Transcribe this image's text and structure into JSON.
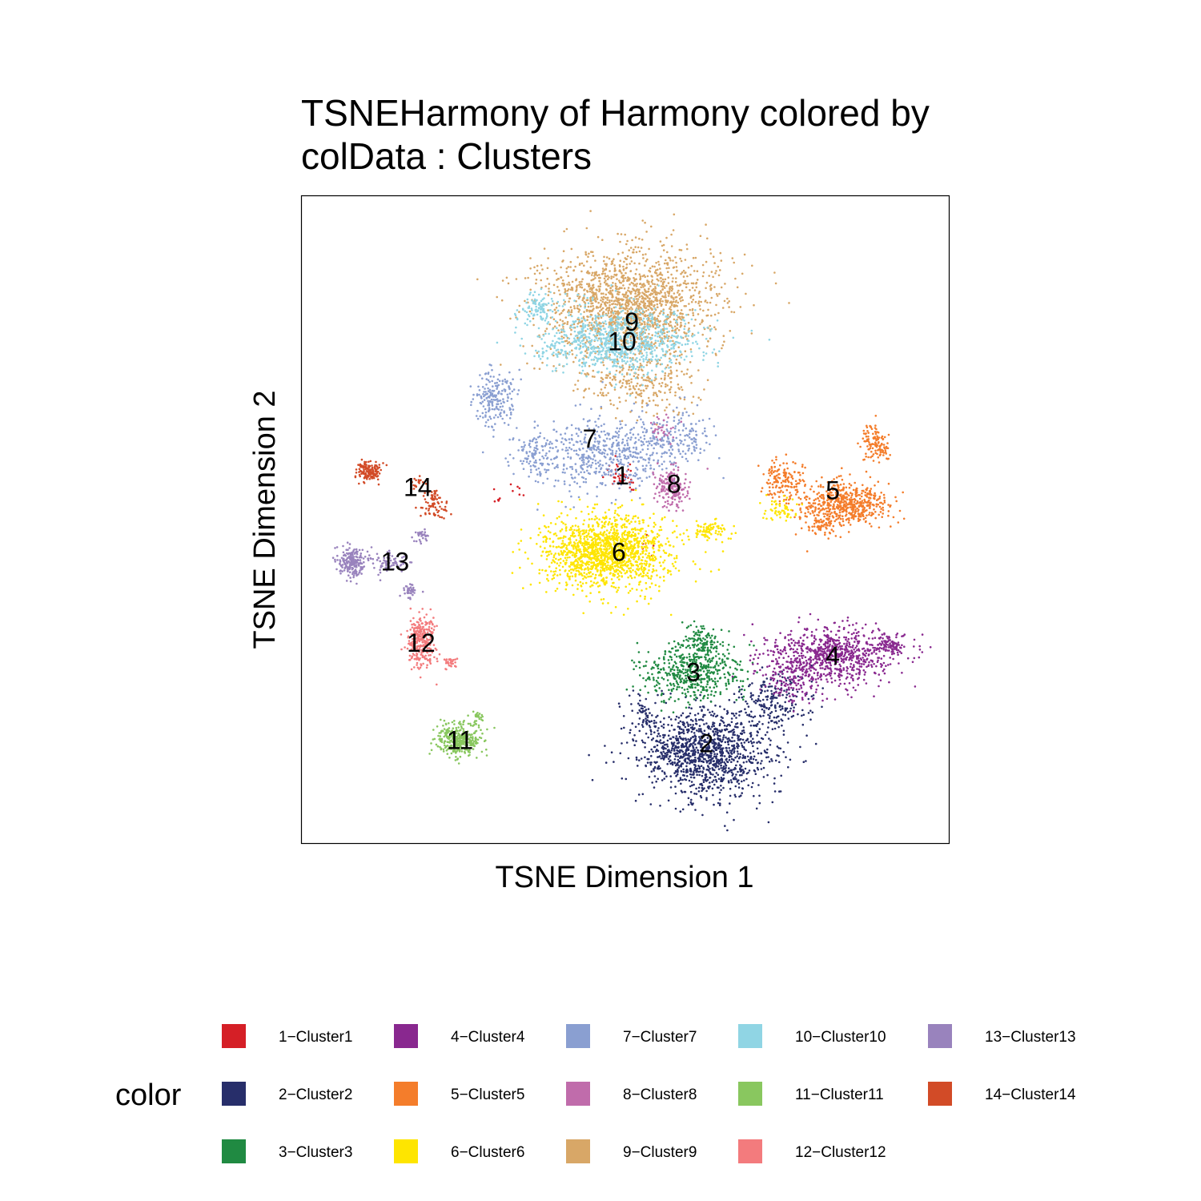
{
  "title_line1": "TSNEHarmony of Harmony  colored by",
  "title_line2": "colData :  Clusters",
  "chart_data": {
    "type": "scatter",
    "xlabel": "TSNE Dimension 1",
    "ylabel": "TSNE Dimension 2",
    "xlim": [
      0,
      100
    ],
    "ylim": [
      0,
      100
    ],
    "grid": false,
    "legend_title": "color",
    "legend_position": "bottom",
    "point_counts_note": "",
    "series": [
      {
        "id": "1",
        "name": "1−Cluster1",
        "color": "#D51F26",
        "label": "1",
        "centroid": [
          49.5,
          56.8
        ],
        "blobs": [
          [
            49.5,
            56.8,
            2.5,
            2.0,
            40
          ],
          [
            30.5,
            53.0,
            1.0,
            1.5,
            6
          ],
          [
            53.5,
            46.5,
            1.2,
            1.5,
            6
          ],
          [
            32.5,
            54.5,
            2,
            2,
            6
          ]
        ]
      },
      {
        "id": "2",
        "name": "2−Cluster2",
        "color": "#272E6A",
        "label": "2",
        "centroid": [
          62.5,
          15.5
        ],
        "blobs": [
          [
            62.5,
            14.0,
            9.5,
            6.0,
            1200
          ],
          [
            73.0,
            22.0,
            5.0,
            4.0,
            200
          ],
          [
            53.0,
            20.0,
            3.0,
            3.0,
            60
          ]
        ]
      },
      {
        "id": "3",
        "name": "3−Cluster3",
        "color": "#208A42",
        "label": "3",
        "centroid": [
          60.5,
          26.5
        ],
        "blobs": [
          [
            60.5,
            26.5,
            7.0,
            4.0,
            500
          ],
          [
            62.0,
            31.0,
            3.0,
            2.5,
            120
          ]
        ]
      },
      {
        "id": "4",
        "name": "4−Cluster4",
        "color": "#89288F",
        "label": "4",
        "centroid": [
          82.0,
          29.0
        ],
        "blobs": [
          [
            82.0,
            29.0,
            9.0,
            4.0,
            800
          ],
          [
            91.0,
            30.5,
            2.0,
            1.5,
            80
          ],
          [
            76.0,
            25.0,
            4.0,
            3.0,
            100
          ]
        ]
      },
      {
        "id": "5",
        "name": "5−Cluster5",
        "color": "#F47D2B",
        "label": "5",
        "centroid": [
          82.0,
          54.5
        ],
        "blobs": [
          [
            84.0,
            52.5,
            6.0,
            3.0,
            550
          ],
          [
            74.0,
            56.0,
            3.0,
            3.0,
            150
          ],
          [
            88.5,
            62.0,
            2.0,
            2.5,
            120
          ],
          [
            80.0,
            49.0,
            3.0,
            2.0,
            60
          ]
        ]
      },
      {
        "id": "6",
        "name": "6−Cluster6",
        "color": "#FEE500",
        "label": "6",
        "centroid": [
          49.0,
          45.0
        ],
        "blobs": [
          [
            47.0,
            45.0,
            9.0,
            5.0,
            1500
          ],
          [
            63.0,
            48.5,
            2.5,
            1.5,
            80
          ],
          [
            74.0,
            51.5,
            2.5,
            1.5,
            60
          ]
        ]
      },
      {
        "id": "7",
        "name": "7−Cluster7",
        "color": "#8A9FD1",
        "label": "7",
        "centroid": [
          44.5,
          62.5
        ],
        "blobs": [
          [
            47.0,
            60.0,
            10.0,
            5.0,
            550
          ],
          [
            30.0,
            68.5,
            3.0,
            4.0,
            200
          ],
          [
            58.0,
            63.0,
            5.0,
            4.0,
            150
          ],
          [
            36.0,
            60.0,
            3.0,
            3.0,
            80
          ]
        ]
      },
      {
        "id": "8",
        "name": "8−Cluster8",
        "color": "#C06CAB",
        "label": "8",
        "centroid": [
          57.5,
          55.5
        ],
        "blobs": [
          [
            57.0,
            55.0,
            2.5,
            2.5,
            180
          ],
          [
            55.5,
            64.0,
            2.0,
            2.0,
            30
          ]
        ]
      },
      {
        "id": "9",
        "name": "9−Cluster9",
        "color": "#D8A767",
        "label": "9",
        "centroid": [
          51.0,
          80.5
        ],
        "blobs": [
          [
            50.5,
            83.0,
            12.0,
            8.0,
            1700
          ],
          [
            52.0,
            71.0,
            8.0,
            4.0,
            250
          ]
        ]
      },
      {
        "id": "10",
        "name": "10−Cluster10",
        "color": "#90D5E4",
        "label": "10",
        "centroid": [
          49.5,
          77.5
        ],
        "blobs": [
          [
            48.5,
            77.5,
            11.0,
            4.5,
            900
          ],
          [
            37.0,
            82.5,
            3.0,
            2.0,
            100
          ]
        ]
      },
      {
        "id": "11",
        "name": "11−Cluster11",
        "color": "#89C75F",
        "label": "11",
        "centroid": [
          24.5,
          16.0
        ],
        "blobs": [
          [
            24.5,
            16.0,
            3.3,
            2.3,
            350
          ],
          [
            27.5,
            19.5,
            1.0,
            1.0,
            20
          ]
        ]
      },
      {
        "id": "12",
        "name": "12−Cluster12",
        "color": "#F37B7D",
        "label": "12",
        "centroid": [
          18.5,
          31.0
        ],
        "blobs": [
          [
            18.5,
            31.0,
            1.8,
            3.5,
            300
          ],
          [
            23.0,
            28.0,
            1.0,
            1.0,
            30
          ]
        ]
      },
      {
        "id": "13",
        "name": "13−Cluster13",
        "color": "#9983BD",
        "label": "13",
        "centroid": [
          14.5,
          43.5
        ],
        "blobs": [
          [
            8.0,
            43.5,
            2.0,
            2.0,
            200
          ],
          [
            13.5,
            43.5,
            2.5,
            1.5,
            80
          ],
          [
            17.0,
            39.0,
            1.2,
            1.0,
            40
          ],
          [
            18.5,
            47.5,
            1.0,
            1.0,
            30
          ]
        ]
      },
      {
        "id": "14",
        "name": "14−Cluster14",
        "color": "#D24B27",
        "label": "14",
        "centroid": [
          18.0,
          55.0
        ],
        "blobs": [
          [
            10.5,
            57.5,
            1.8,
            1.2,
            150
          ],
          [
            20.5,
            52.5,
            2.0,
            2.0,
            80
          ],
          [
            18.0,
            55.5,
            1.0,
            1.0,
            20
          ]
        ]
      }
    ]
  }
}
